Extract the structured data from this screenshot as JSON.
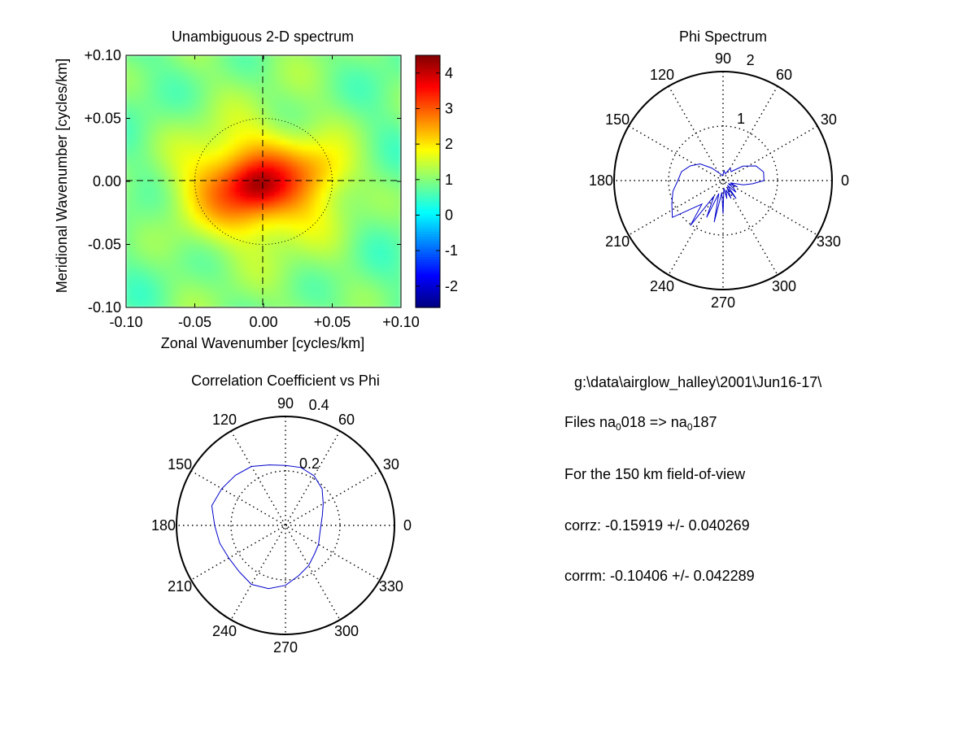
{
  "chart_data": [
    {
      "type": "heatmap",
      "title": "Unambiguous 2-D spectrum",
      "xlabel": "Zonal Wavenumber [cycles/km]",
      "ylabel": "Meridional Wavenumber [cycles/km]",
      "xlim": [
        -0.1,
        0.1
      ],
      "ylim": [
        -0.1,
        0.1
      ],
      "xticks": [
        "-0.10",
        "-0.05",
        "0.00",
        "+0.05",
        "+0.10"
      ],
      "yticks": [
        "+0.10",
        "+0.05",
        "0.00",
        "-0.05",
        "-0.10"
      ],
      "colorbar": {
        "range": [
          -2.6,
          4.5
        ],
        "ticks": [
          "4",
          "3",
          "2",
          "1",
          "0",
          "-1",
          "-2"
        ],
        "colormap": "jet"
      },
      "peak": {
        "x": -0.005,
        "y": -0.003,
        "value": 4.5
      },
      "background_value": 1.0,
      "reference_circle_radius": 0.05,
      "grid": false
    },
    {
      "type": "polar",
      "title": "Phi Spectrum",
      "rmax": 2,
      "rings": [
        1,
        2
      ],
      "ring_labels": [
        "1",
        "2"
      ],
      "angle_labels": [
        "90",
        "60",
        "30",
        "0",
        "330",
        "300",
        "270",
        "240",
        "210",
        "180",
        "150",
        "120"
      ],
      "series": [
        {
          "color": "#0000cc",
          "theta_deg": [
            0,
            12,
            24,
            36,
            48,
            60,
            72,
            84,
            96,
            108,
            120,
            132,
            144,
            156,
            168,
            180,
            192,
            204,
            216,
            228,
            234,
            240,
            246,
            252,
            258,
            264,
            270,
            276,
            282,
            288,
            294,
            300,
            306,
            312,
            318,
            324,
            330,
            336,
            342,
            348,
            354
          ],
          "r": [
            0.75,
            0.76,
            0.66,
            0.45,
            0.22,
            0.26,
            0.13,
            0.18,
            0.09,
            0.12,
            0.17,
            0.31,
            0.52,
            0.66,
            0.78,
            0.83,
            0.94,
            1.03,
            1.15,
            0.58,
            1.02,
            0.33,
            0.74,
            0.25,
            0.78,
            0.22,
            0.61,
            0.14,
            0.34,
            0.18,
            0.36,
            0.15,
            0.41,
            0.12,
            0.32,
            0.24,
            0.11,
            0.29,
            0.14,
            0.38,
            0.55
          ]
        }
      ]
    },
    {
      "type": "polar",
      "title": "Correlation Coefficient vs Phi",
      "rmax": 0.4,
      "rings": [
        0.2,
        0.4
      ],
      "ring_labels": [
        "0.2",
        "0.4"
      ],
      "angle_labels": [
        "90",
        "60",
        "30",
        "0",
        "330",
        "300",
        "270",
        "240",
        "210",
        "180",
        "150",
        "120"
      ],
      "series": [
        {
          "color": "#0000cc",
          "theta_deg": [
            0,
            15,
            30,
            45,
            60,
            75,
            90,
            105,
            120,
            135,
            150,
            165,
            180,
            195,
            210,
            225,
            240,
            255,
            270,
            285,
            300,
            315,
            330,
            345
          ],
          "r": [
            0.13,
            0.14,
            0.16,
            0.19,
            0.21,
            0.22,
            0.22,
            0.23,
            0.25,
            0.26,
            0.27,
            0.28,
            0.26,
            0.25,
            0.24,
            0.24,
            0.25,
            0.24,
            0.22,
            0.19,
            0.17,
            0.15,
            0.14,
            0.13
          ]
        }
      ]
    }
  ],
  "info": {
    "path": "g:\\data\\airglow_halley\\2001\\Jun16-17\\",
    "files_label": "Files  na",
    "file_sub_1": "0",
    "file_start": "018  =>  na",
    "file_sub_2": "0",
    "file_end": "187",
    "fov": "For the  150 km field-of-view",
    "corrz": "corrz: -0.15919 +/- 0.040269",
    "corrm": "corrm: -0.10406 +/- 0.042289"
  }
}
